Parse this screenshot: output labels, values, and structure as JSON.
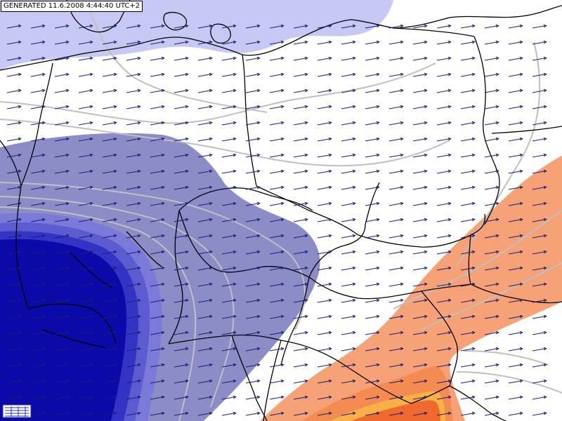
{
  "map": {
    "generated_label": "GENERATED 11.6.2008 4:44:40 UTC+2",
    "colors": {
      "background": "#ffffff",
      "light_blue": "#c8c8f4",
      "mid_blue": "#8c8cc6",
      "blue_1": "#7a7ad8",
      "blue_2": "#5c5cd0",
      "blue_3": "#3434c4",
      "deep_blue": "#0a0aa8",
      "orange_light": "#f7a276",
      "orange_mid": "#f48c52",
      "orange_yellow": "#f9b046",
      "orange_deep": "#f06a30",
      "contour": "#c0c0c0",
      "border": "#000000",
      "wind_arrow": "#1c1c7a"
    },
    "wind": {
      "description_icon": "wind-arrow-icon",
      "direction_deg_from_north": 80
    },
    "legend": {
      "icon": "legend-grid-icon"
    }
  }
}
